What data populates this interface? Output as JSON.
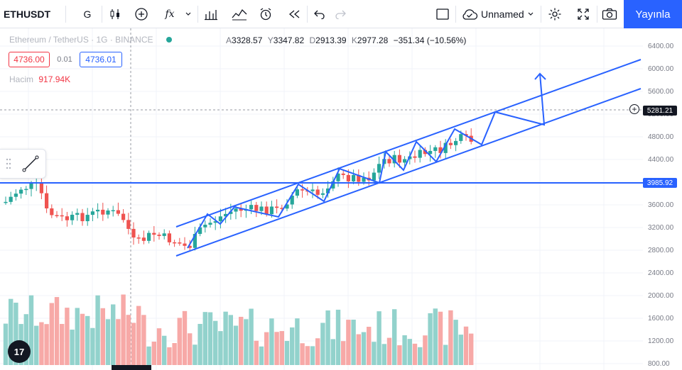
{
  "toolbar": {
    "symbol": "ETHUSDT",
    "interval": "G",
    "fx_label": "fx",
    "layout_name": "Unnamed",
    "publish_label": "Yayınla"
  },
  "legend": {
    "title": "Ethereum / TetherUS · 1G · BINANCE",
    "ohlc": {
      "o_label": "A",
      "o": "3328.57",
      "h_label": "Y",
      "h": "3347.82",
      "l_label": "D",
      "l": "2913.39",
      "c_label": "K",
      "c": "2977.28",
      "change": "−351.34 (−10.56%)"
    },
    "sell_price": "4736.00",
    "spread": "0.01",
    "buy_price": "4736.01",
    "volume_label": "Hacim",
    "volume_value": "917.94K"
  },
  "axis": {
    "ticks": [
      "6400.00",
      "6000.00",
      "5600.00",
      "5200.00",
      "4800.00",
      "4400.00",
      "4000.00",
      "3600.00",
      "3200.00",
      "2800.00",
      "2400.00",
      "2000.00",
      "1600.00",
      "1200.00",
      "800.00"
    ],
    "crosshair_price": "5281.21",
    "line_price": "3985.92"
  },
  "logo_text": "17",
  "colors": {
    "up": "#26a69a",
    "down": "#ef5350",
    "accent": "#2962ff",
    "drawing": "#2962ff"
  }
}
